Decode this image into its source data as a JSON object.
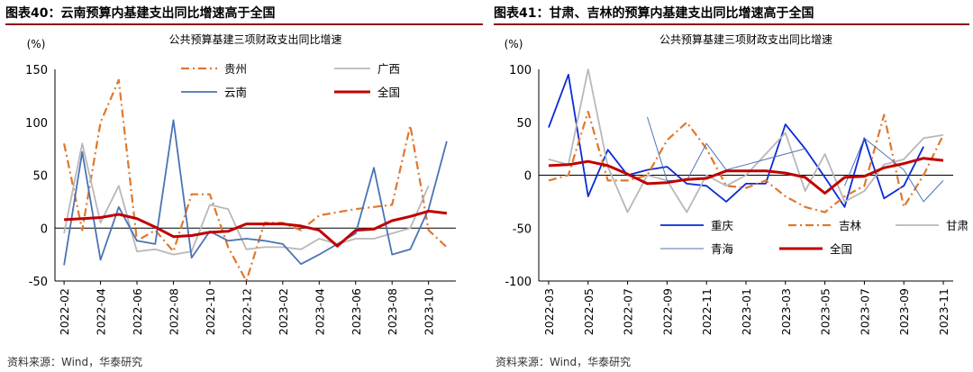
{
  "colors": {
    "accent": "#8c1515",
    "guizhou": "#e0772b",
    "guangxi": "#b8b8b8",
    "yunnan": "#4a74b4",
    "national": "#c00000",
    "chongqing": "#0a2ad6",
    "jilin": "#e0772b",
    "gansu": "#b8b8b8",
    "qinghai": "#4a74b4"
  },
  "left": {
    "fig_title": "图表40：云南预算内基建支出同比增速高于全国",
    "source": "资料来源：Wind，华泰研究",
    "chart_data": {
      "type": "line",
      "title": "公共预算基建三项财政支出同比增速",
      "unit": "(%)",
      "ylim": [
        -50,
        150
      ],
      "yticks": [
        -50,
        0,
        50,
        100,
        150
      ],
      "x": [
        "2022-02",
        "2022-03",
        "2022-04",
        "2022-05",
        "2022-06",
        "2022-07",
        "2022-08",
        "2022-09",
        "2022-10",
        "2022-11",
        "2022-12",
        "2023-01",
        "2023-02",
        "2023-03",
        "2023-04",
        "2023-05",
        "2023-06",
        "2023-07",
        "2023-08",
        "2023-09",
        "2023-10",
        "2023-11"
      ],
      "tick_labels": [
        "2022-02",
        "2022-04",
        "2022-06",
        "2022-08",
        "2022-10",
        "2022-12",
        "2023-02",
        "2023-04",
        "2023-06",
        "2023-08",
        "2023-10"
      ],
      "series": [
        {
          "name": "贵州",
          "color": "#e0772b",
          "style": "dashdot",
          "values": [
            80,
            -2,
            100,
            140,
            -12,
            -2,
            -22,
            32,
            32,
            -18,
            -50,
            5,
            5,
            -2,
            12,
            15,
            18,
            20,
            22,
            97,
            -2,
            -18
          ]
        },
        {
          "name": "广西",
          "color": "#b8b8b8",
          "style": "solid",
          "values": [
            -5,
            80,
            5,
            40,
            -22,
            -20,
            -25,
            -22,
            22,
            18,
            -20,
            -18,
            -18,
            -20,
            -10,
            -15,
            -10,
            -10,
            -5,
            0,
            40,
            null
          ]
        },
        {
          "name": "云南",
          "color": "#4a74b4",
          "style": "solid",
          "values": [
            -35,
            72,
            -30,
            20,
            -12,
            -15,
            102,
            -28,
            -3,
            -12,
            -10,
            -12,
            -15,
            -34,
            -25,
            -15,
            -5,
            57,
            -25,
            -20,
            18,
            82
          ]
        },
        {
          "name": "全国",
          "color": "#c00000",
          "style": "thick",
          "values": [
            8,
            9,
            10,
            13,
            9,
            1,
            -8,
            -7,
            -4,
            -3,
            4,
            4,
            4,
            2,
            -2,
            -17,
            -2,
            -1,
            7,
            11,
            16,
            14
          ]
        }
      ]
    }
  },
  "right": {
    "fig_title": "图表41：甘肃、吉林的预算内基建支出同比增速高于全国",
    "source": "资料来源：Wind，华泰研究",
    "chart_data": {
      "type": "line",
      "title": "公共预算基建三项财政支出同比增速",
      "unit": "(%)",
      "ylim": [
        -100,
        100
      ],
      "yticks": [
        -100,
        -50,
        0,
        50,
        100
      ],
      "x": [
        "2022-03",
        "2022-04",
        "2022-05",
        "2022-06",
        "2022-07",
        "2022-08",
        "2022-09",
        "2022-10",
        "2022-11",
        "2022-12",
        "2023-01",
        "2023-02",
        "2023-03",
        "2023-04",
        "2023-05",
        "2023-06",
        "2023-07",
        "2023-08",
        "2023-09",
        "2023-10",
        "2023-11"
      ],
      "tick_labels": [
        "2022-03",
        "2022-05",
        "2022-07",
        "2022-09",
        "2022-11",
        "2023-01",
        "2023-03",
        "2023-05",
        "2023-07",
        "2023-09",
        "2023-11"
      ],
      "series": [
        {
          "name": "重庆",
          "color": "#0a2ad6",
          "style": "solid",
          "values": [
            45,
            95,
            -20,
            24,
            0,
            5,
            8,
            -8,
            -10,
            -25,
            -8,
            -8,
            48,
            25,
            -2,
            -30,
            35,
            -22,
            -10,
            27,
            null
          ]
        },
        {
          "name": "吉林",
          "color": "#e0772b",
          "style": "dashdot",
          "values": [
            -5,
            0,
            60,
            -5,
            -5,
            0,
            33,
            50,
            25,
            -10,
            -12,
            -5,
            -20,
            -30,
            -35,
            -20,
            -10,
            57,
            -30,
            0,
            38
          ]
        },
        {
          "name": "甘肃",
          "color": "#b8b8b8",
          "style": "solid",
          "values": [
            15,
            10,
            100,
            8,
            -35,
            0,
            -5,
            -35,
            0,
            -10,
            0,
            20,
            40,
            -15,
            20,
            -25,
            -15,
            10,
            15,
            35,
            38
          ]
        },
        {
          "name": "青海",
          "color": "#4a74b4",
          "style": "thin",
          "values": [
            null,
            null,
            null,
            null,
            null,
            55,
            -5,
            -5,
            30,
            5,
            10,
            15,
            20,
            25,
            null,
            -10,
            35,
            20,
            5,
            -25,
            -5
          ]
        },
        {
          "name": "全国",
          "color": "#c00000",
          "style": "thick",
          "values": [
            9,
            10,
            13,
            9,
            1,
            -8,
            -7,
            -4,
            -3,
            4,
            4,
            4,
            2,
            -2,
            -17,
            -2,
            -1,
            7,
            11,
            16,
            14
          ]
        }
      ]
    }
  }
}
